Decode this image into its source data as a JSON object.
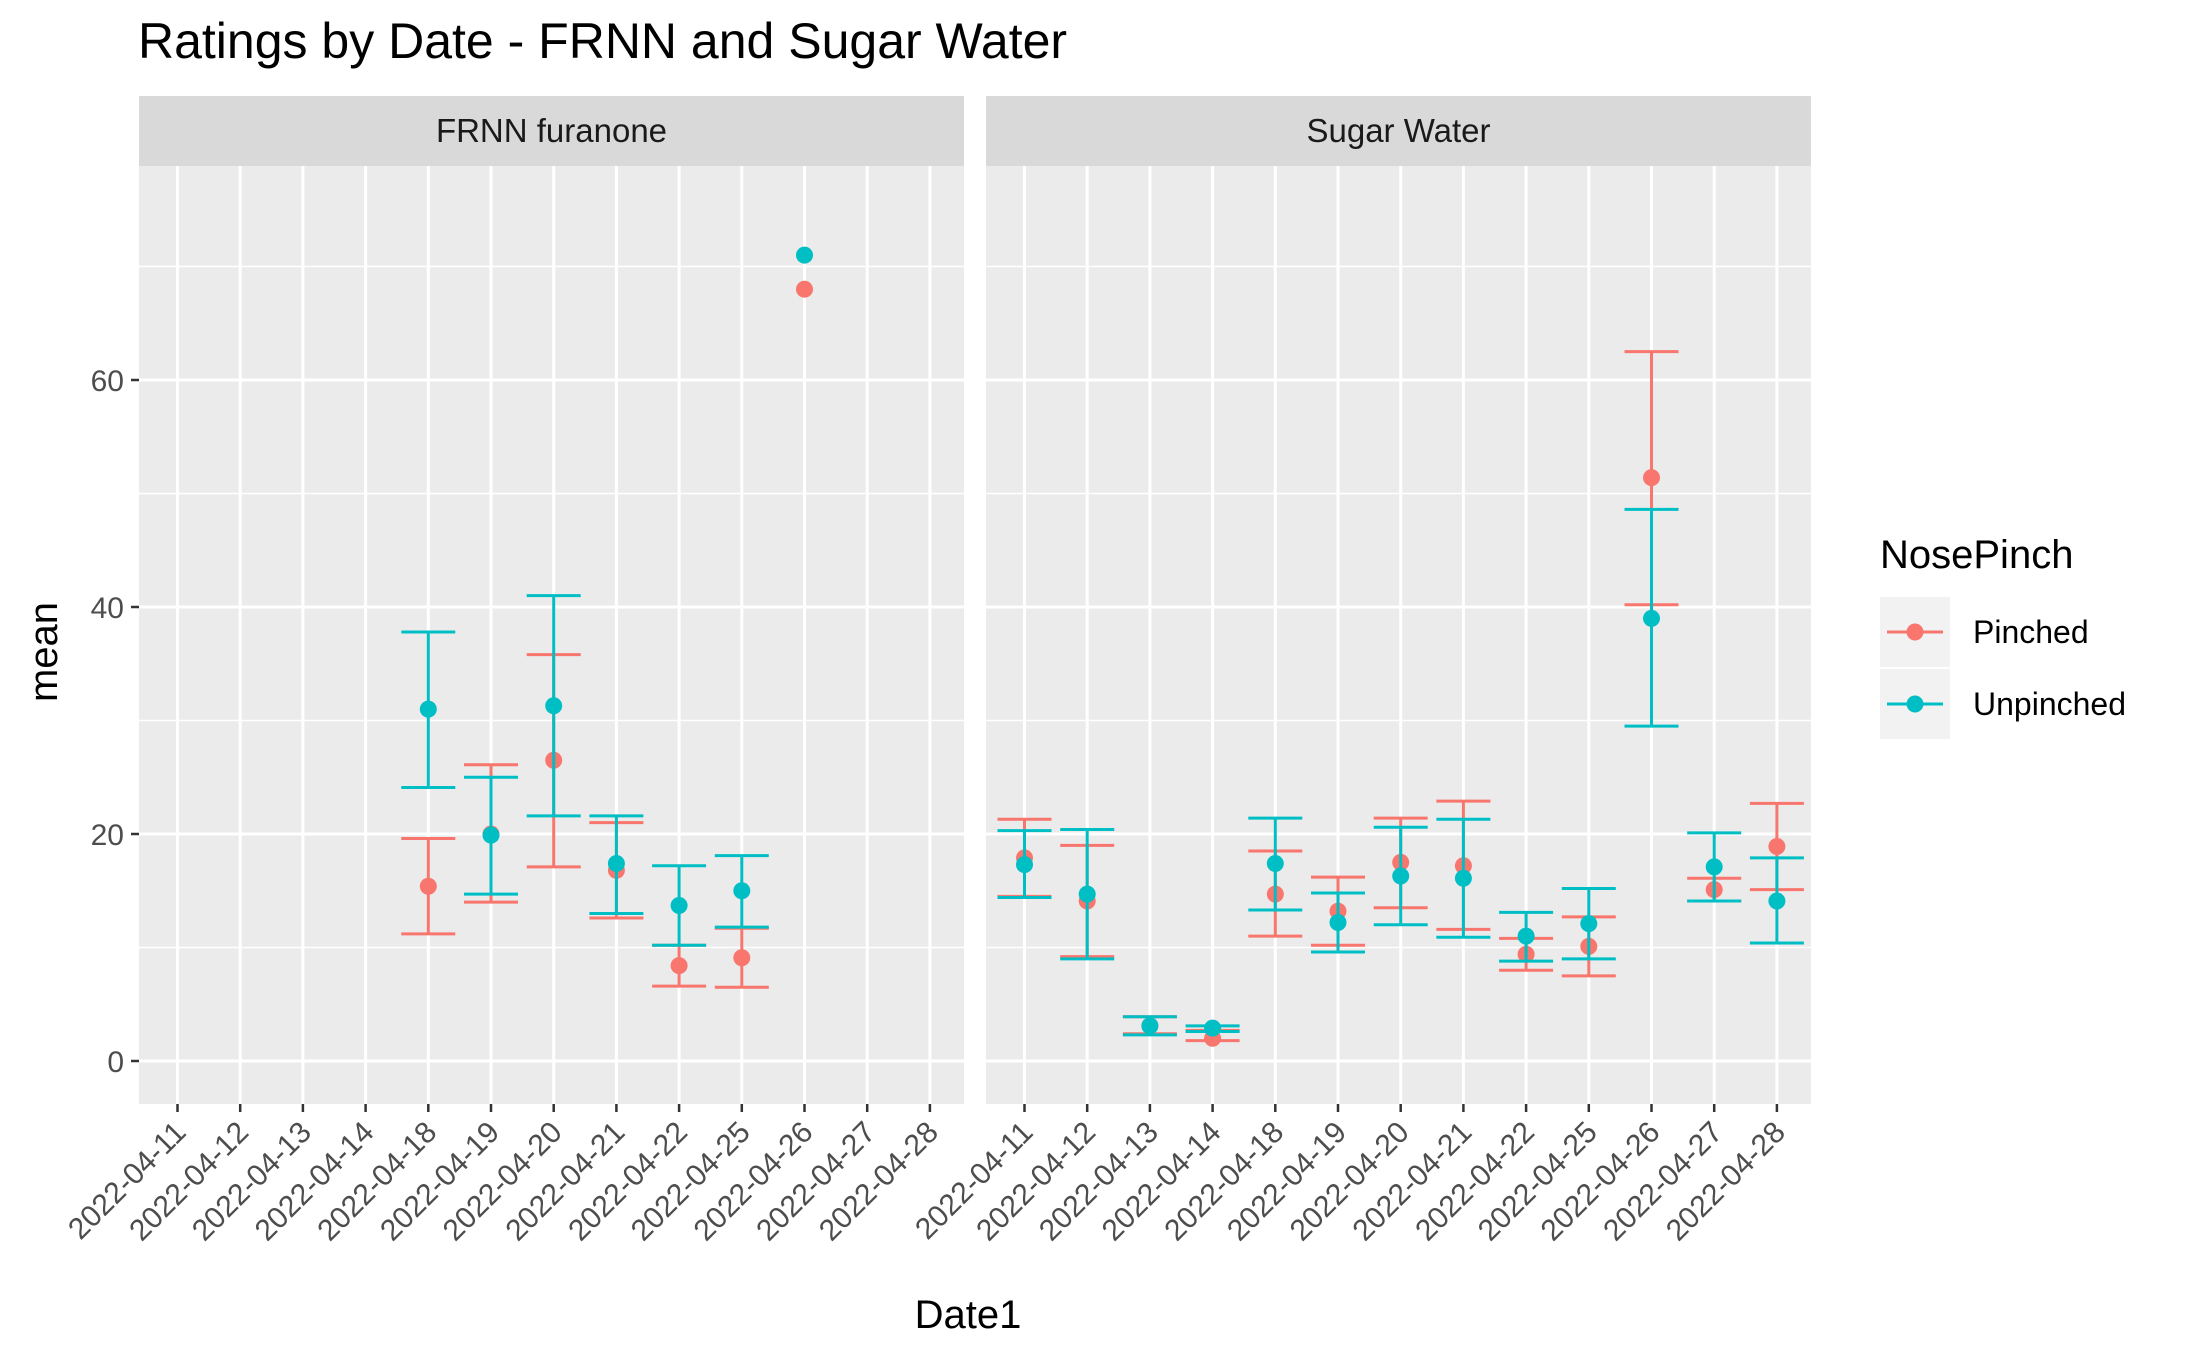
{
  "chart_data": {
    "type": "scatter",
    "subtype": "faceted point with error bars",
    "title": "Ratings by Date - FRNN and Sugar Water",
    "xlabel": "Date1",
    "ylabel": "mean",
    "ylim": [
      -4,
      80
    ],
    "yticks": [
      0,
      20,
      40,
      60
    ],
    "grid": true,
    "legend_position": "right",
    "categories": [
      "2022-04-11",
      "2022-04-12",
      "2022-04-13",
      "2022-04-14",
      "2022-04-18",
      "2022-04-19",
      "2022-04-20",
      "2022-04-21",
      "2022-04-22",
      "2022-04-25",
      "2022-04-26",
      "2022-04-27",
      "2022-04-28"
    ],
    "legend": {
      "title": "NosePinch",
      "entries": [
        {
          "name": "Pinched",
          "color": "#F8766D"
        },
        {
          "name": "Unpinched",
          "color": "#00BFC4"
        }
      ]
    },
    "panels": [
      {
        "name": "FRNN furanone",
        "series": [
          {
            "name": "Pinched",
            "color": "#F8766D",
            "points": [
              {
                "x": "2022-04-18",
                "y": 15.4,
                "ymin": 11.2,
                "ymax": 19.6
              },
              {
                "x": "2022-04-19",
                "y": 20.0,
                "ymin": 14.0,
                "ymax": 26.1
              },
              {
                "x": "2022-04-20",
                "y": 26.5,
                "ymin": 17.1,
                "ymax": 35.8
              },
              {
                "x": "2022-04-21",
                "y": 16.8,
                "ymin": 12.6,
                "ymax": 21.0
              },
              {
                "x": "2022-04-22",
                "y": 8.4,
                "ymin": 6.6,
                "ymax": 10.2
              },
              {
                "x": "2022-04-25",
                "y": 9.1,
                "ymin": 6.5,
                "ymax": 11.7
              },
              {
                "x": "2022-04-26",
                "y": 68.0,
                "ymin": null,
                "ymax": null
              }
            ]
          },
          {
            "name": "Unpinched",
            "color": "#00BFC4",
            "points": [
              {
                "x": "2022-04-18",
                "y": 31.0,
                "ymin": 24.1,
                "ymax": 37.8
              },
              {
                "x": "2022-04-19",
                "y": 19.9,
                "ymin": 14.7,
                "ymax": 25.0
              },
              {
                "x": "2022-04-20",
                "y": 31.3,
                "ymin": 21.6,
                "ymax": 41.0
              },
              {
                "x": "2022-04-21",
                "y": 17.4,
                "ymin": 13.0,
                "ymax": 21.6
              },
              {
                "x": "2022-04-22",
                "y": 13.7,
                "ymin": 10.2,
                "ymax": 17.2
              },
              {
                "x": "2022-04-25",
                "y": 15.0,
                "ymin": 11.8,
                "ymax": 18.1
              },
              {
                "x": "2022-04-26",
                "y": 71.0,
                "ymin": null,
                "ymax": null
              }
            ]
          }
        ]
      },
      {
        "name": "Sugar Water",
        "series": [
          {
            "name": "Pinched",
            "color": "#F8766D",
            "points": [
              {
                "x": "2022-04-11",
                "y": 17.9,
                "ymin": 14.5,
                "ymax": 21.3
              },
              {
                "x": "2022-04-12",
                "y": 14.1,
                "ymin": 9.2,
                "ymax": 19.0
              },
              {
                "x": "2022-04-13",
                "y": 3.1,
                "ymin": 2.4,
                "ymax": 3.9
              },
              {
                "x": "2022-04-14",
                "y": 2.0,
                "ymin": 1.8,
                "ymax": 2.7
              },
              {
                "x": "2022-04-18",
                "y": 14.7,
                "ymin": 11.0,
                "ymax": 18.5
              },
              {
                "x": "2022-04-19",
                "y": 13.2,
                "ymin": 10.2,
                "ymax": 16.2
              },
              {
                "x": "2022-04-20",
                "y": 17.5,
                "ymin": 13.5,
                "ymax": 21.4
              },
              {
                "x": "2022-04-21",
                "y": 17.2,
                "ymin": 11.6,
                "ymax": 22.9
              },
              {
                "x": "2022-04-22",
                "y": 9.4,
                "ymin": 8.0,
                "ymax": 10.8
              },
              {
                "x": "2022-04-25",
                "y": 10.1,
                "ymin": 7.5,
                "ymax": 12.7
              },
              {
                "x": "2022-04-26",
                "y": 51.4,
                "ymin": 40.2,
                "ymax": 62.5
              },
              {
                "x": "2022-04-27",
                "y": 15.1,
                "ymin": 14.1,
                "ymax": 16.1
              },
              {
                "x": "2022-04-28",
                "y": 18.9,
                "ymin": 15.1,
                "ymax": 22.7
              }
            ]
          },
          {
            "name": "Unpinched",
            "color": "#00BFC4",
            "points": [
              {
                "x": "2022-04-11",
                "y": 17.3,
                "ymin": 14.4,
                "ymax": 20.3
              },
              {
                "x": "2022-04-12",
                "y": 14.7,
                "ymin": 9.0,
                "ymax": 20.4
              },
              {
                "x": "2022-04-13",
                "y": 3.1,
                "ymin": 2.3,
                "ymax": 3.9
              },
              {
                "x": "2022-04-14",
                "y": 2.9,
                "ymin": 2.6,
                "ymax": 3.1
              },
              {
                "x": "2022-04-18",
                "y": 17.4,
                "ymin": 13.3,
                "ymax": 21.4
              },
              {
                "x": "2022-04-19",
                "y": 12.2,
                "ymin": 9.6,
                "ymax": 14.8
              },
              {
                "x": "2022-04-20",
                "y": 16.3,
                "ymin": 12.0,
                "ymax": 20.6
              },
              {
                "x": "2022-04-21",
                "y": 16.1,
                "ymin": 10.9,
                "ymax": 21.3
              },
              {
                "x": "2022-04-22",
                "y": 11.0,
                "ymin": 8.8,
                "ymax": 13.1
              },
              {
                "x": "2022-04-25",
                "y": 12.1,
                "ymin": 9.0,
                "ymax": 15.2
              },
              {
                "x": "2022-04-26",
                "y": 39.0,
                "ymin": 29.5,
                "ymax": 48.6
              },
              {
                "x": "2022-04-27",
                "y": 17.1,
                "ymin": 14.1,
                "ymax": 20.1
              },
              {
                "x": "2022-04-28",
                "y": 14.1,
                "ymin": 10.4,
                "ymax": 17.9
              }
            ]
          }
        ]
      }
    ]
  }
}
